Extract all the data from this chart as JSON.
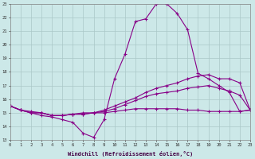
{
  "xlabel": "Windchill (Refroidissement éolien,°C)",
  "background_color": "#cce8e8",
  "grid_color": "#aac8c8",
  "line_color": "#880088",
  "hours": [
    0,
    1,
    2,
    3,
    4,
    5,
    6,
    7,
    8,
    9,
    10,
    11,
    12,
    13,
    14,
    15,
    16,
    17,
    18,
    19,
    20,
    21,
    22,
    23
  ],
  "temp_line": [
    15.5,
    15.2,
    15.0,
    14.8,
    14.7,
    14.5,
    14.3,
    13.5,
    13.2,
    14.5,
    17.5,
    19.3,
    21.7,
    21.9,
    23.0,
    23.0,
    22.3,
    21.1,
    17.9,
    17.5,
    17.0,
    16.5,
    15.1,
    15.2
  ],
  "line2": [
    15.5,
    15.2,
    15.0,
    15.0,
    14.8,
    14.8,
    14.9,
    14.9,
    15.0,
    15.2,
    15.5,
    15.8,
    16.1,
    16.5,
    16.8,
    17.0,
    17.2,
    17.5,
    17.7,
    17.8,
    17.5,
    17.5,
    17.2,
    15.2
  ],
  "line3": [
    15.5,
    15.2,
    15.0,
    15.0,
    14.8,
    14.8,
    14.9,
    14.9,
    15.0,
    15.1,
    15.3,
    15.6,
    15.9,
    16.2,
    16.4,
    16.5,
    16.6,
    16.8,
    16.9,
    17.0,
    16.8,
    16.6,
    16.3,
    15.2
  ],
  "line4": [
    15.5,
    15.2,
    15.1,
    15.0,
    14.8,
    14.8,
    14.9,
    15.0,
    15.0,
    15.0,
    15.1,
    15.2,
    15.3,
    15.3,
    15.3,
    15.3,
    15.3,
    15.2,
    15.2,
    15.1,
    15.1,
    15.1,
    15.1,
    15.2
  ],
  "ylim": [
    13,
    23
  ],
  "xlim": [
    0,
    23
  ],
  "yticks": [
    13,
    14,
    15,
    16,
    17,
    18,
    19,
    20,
    21,
    22,
    23
  ],
  "xticks": [
    0,
    1,
    2,
    3,
    4,
    5,
    6,
    7,
    8,
    9,
    10,
    11,
    12,
    13,
    14,
    15,
    16,
    17,
    18,
    19,
    20,
    21,
    22,
    23
  ]
}
